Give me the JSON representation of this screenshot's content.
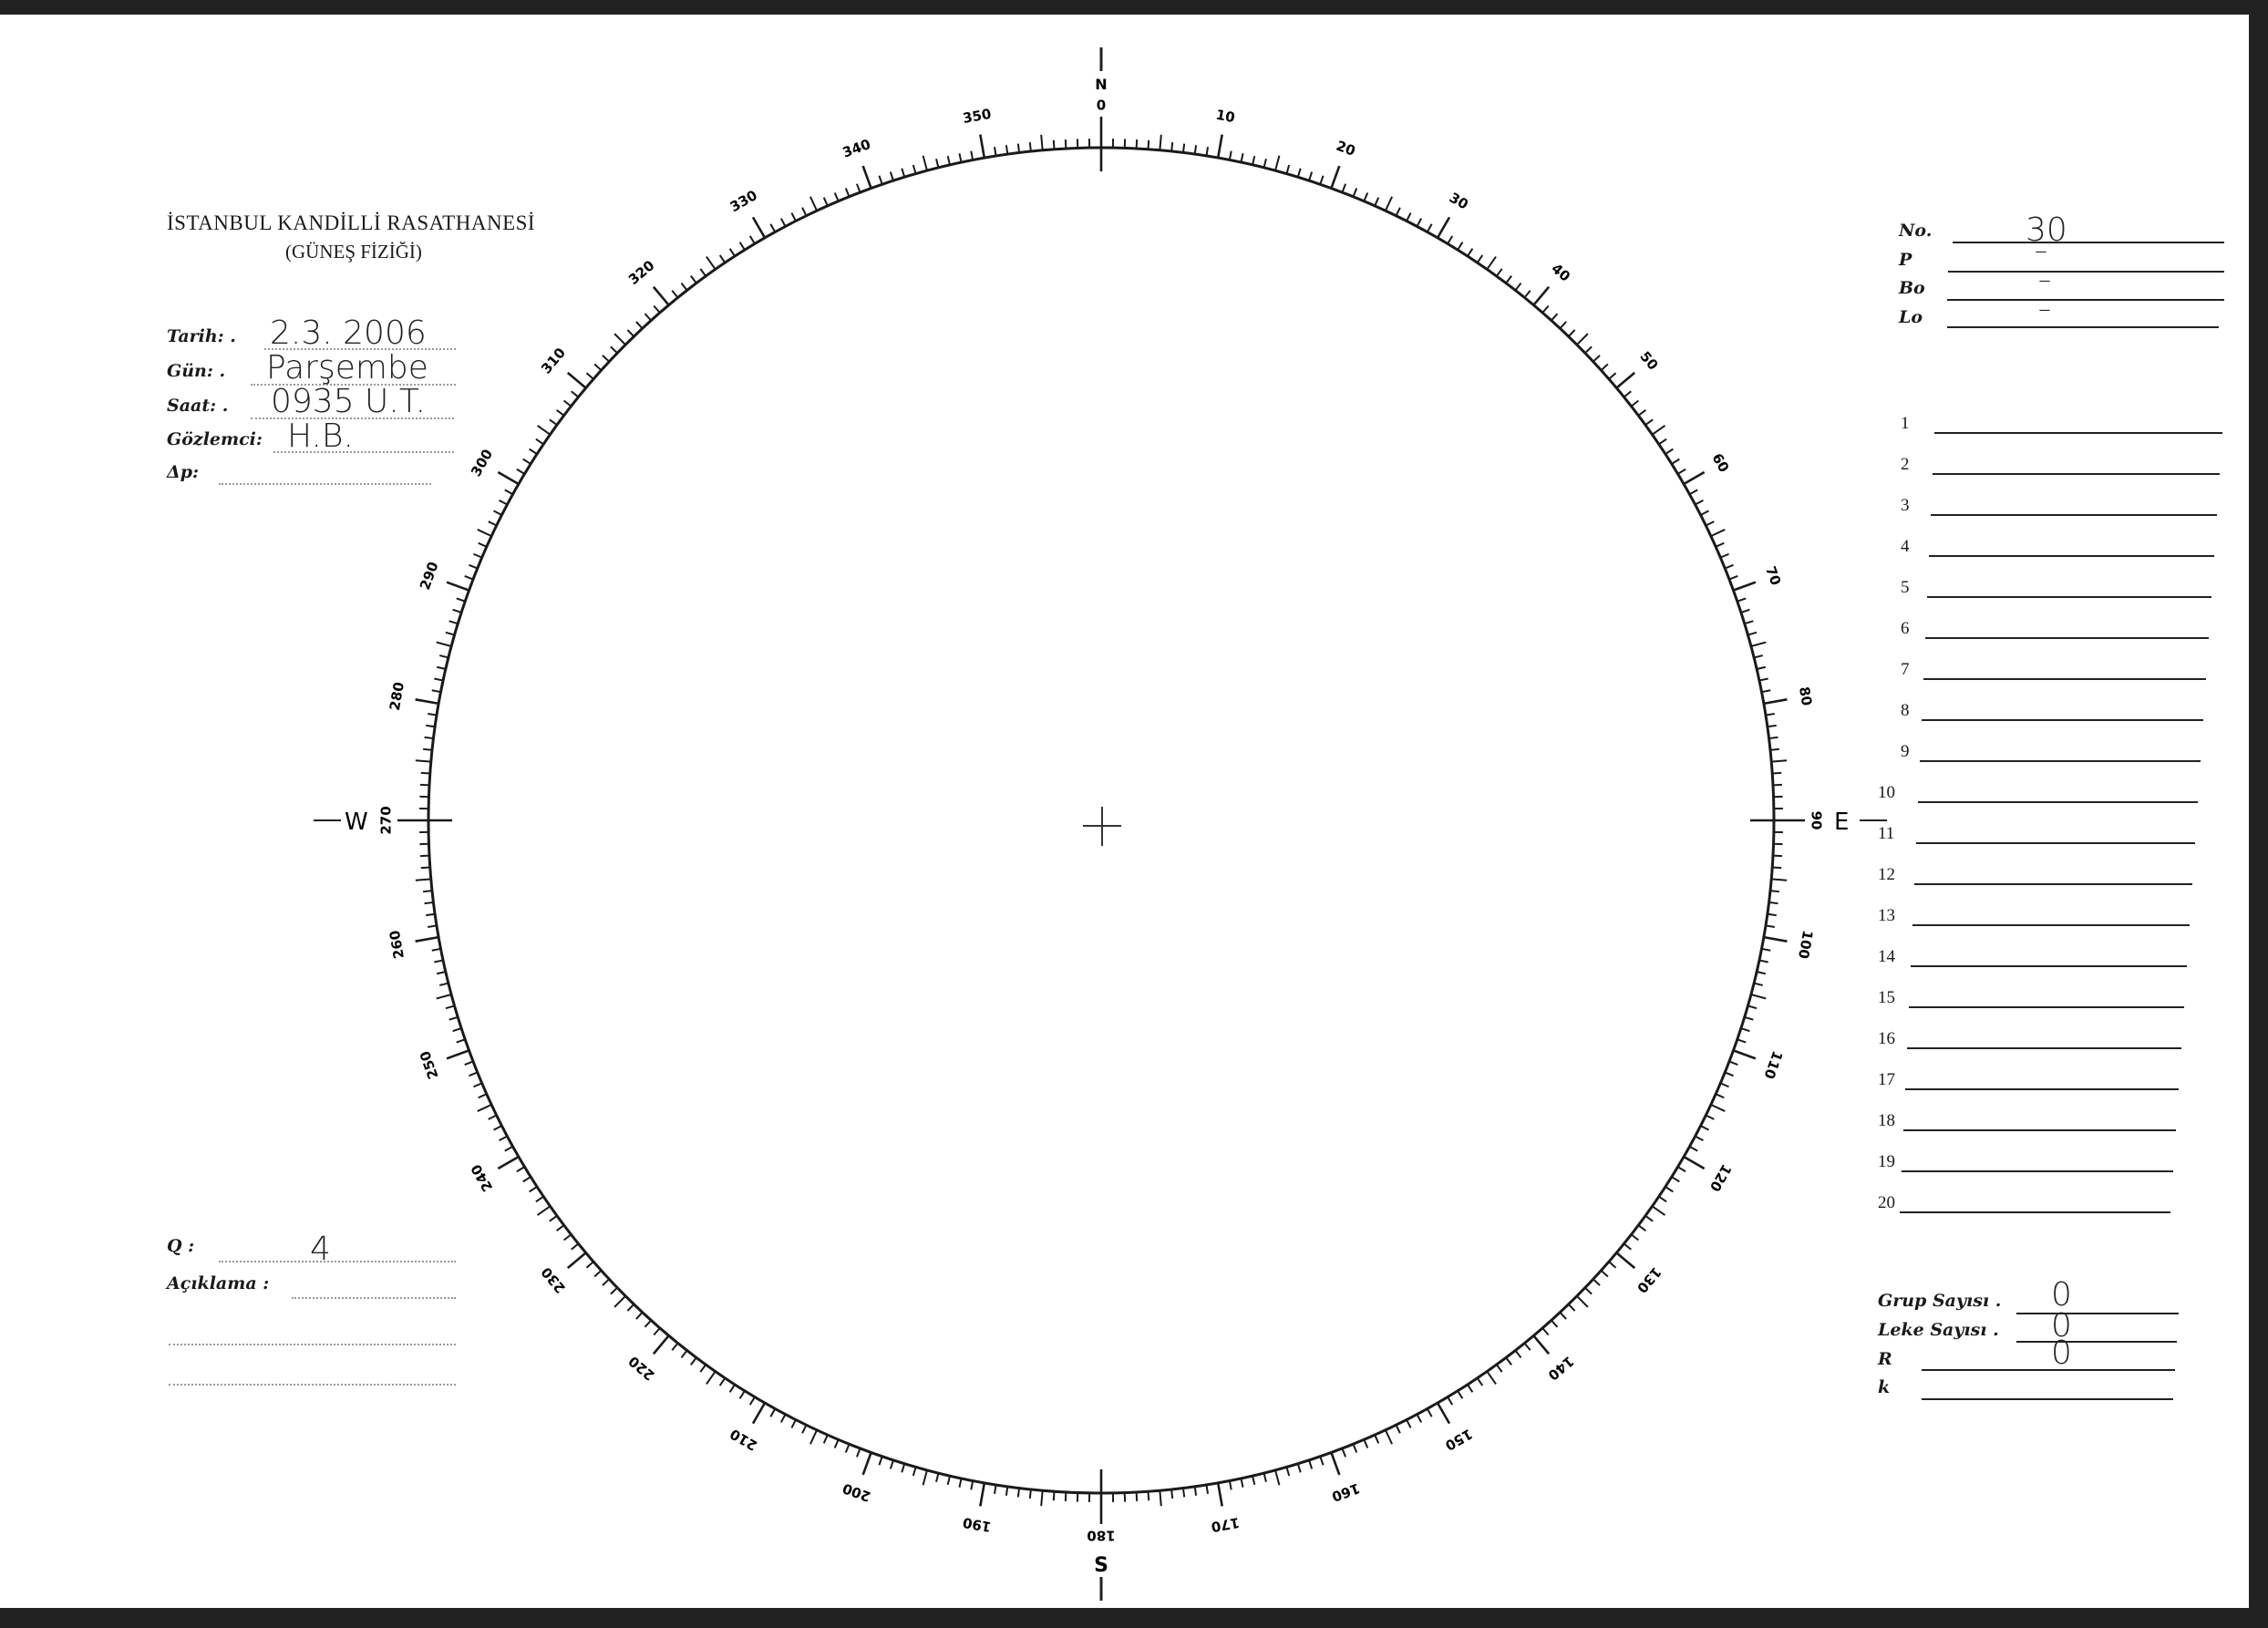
{
  "header": {
    "institution": "İSTANBUL KANDİLLİ RASATHANESİ",
    "department": "(GÜNEŞ FİZİĞİ)"
  },
  "observation": {
    "date_label": "Tarih: .",
    "date_value": "2.3. 2006",
    "day_label": "Gün: .",
    "day_value": "Parşembe",
    "time_label": "Saat: .",
    "time_value": "0935 U.T.",
    "observer_label": "Gözlemci:",
    "observer_value": "H.B.",
    "dp_label": "Δp:",
    "dp_value": ""
  },
  "quality": {
    "q_label": "Q :",
    "q_value": "4",
    "notes_label": "Açıklama :"
  },
  "solar_params": {
    "no_label": "No.",
    "no_value": "30",
    "p_label": "P",
    "p_value": "–",
    "bo_label": "Bo",
    "bo_value": "–",
    "lo_label": "Lo",
    "lo_value": "–"
  },
  "group_rows": [
    "1",
    "2",
    "3",
    "4",
    "5",
    "6",
    "7",
    "8",
    "9",
    "10",
    "11",
    "12",
    "13",
    "14",
    "15",
    "16",
    "17",
    "18",
    "19",
    "20"
  ],
  "counts": {
    "group_label": "Grup Sayısı .",
    "group_value": "0",
    "spot_label": "Leke Sayısı .",
    "spot_value": "0",
    "r_label": "R",
    "r_value": "0",
    "k_label": "k",
    "k_value": ""
  },
  "dial": {
    "labels": [
      "0",
      "10",
      "20",
      "30",
      "40",
      "50",
      "60",
      "70",
      "80",
      "90",
      "100",
      "110",
      "120",
      "130",
      "140",
      "150",
      "160",
      "170",
      "180",
      "190",
      "200",
      "210",
      "220",
      "230",
      "240",
      "250",
      "260",
      "270",
      "280",
      "290",
      "300",
      "310",
      "320",
      "330",
      "340",
      "350"
    ],
    "cardinals": {
      "north": "N",
      "east": "E",
      "south": "S",
      "west": "W"
    }
  }
}
